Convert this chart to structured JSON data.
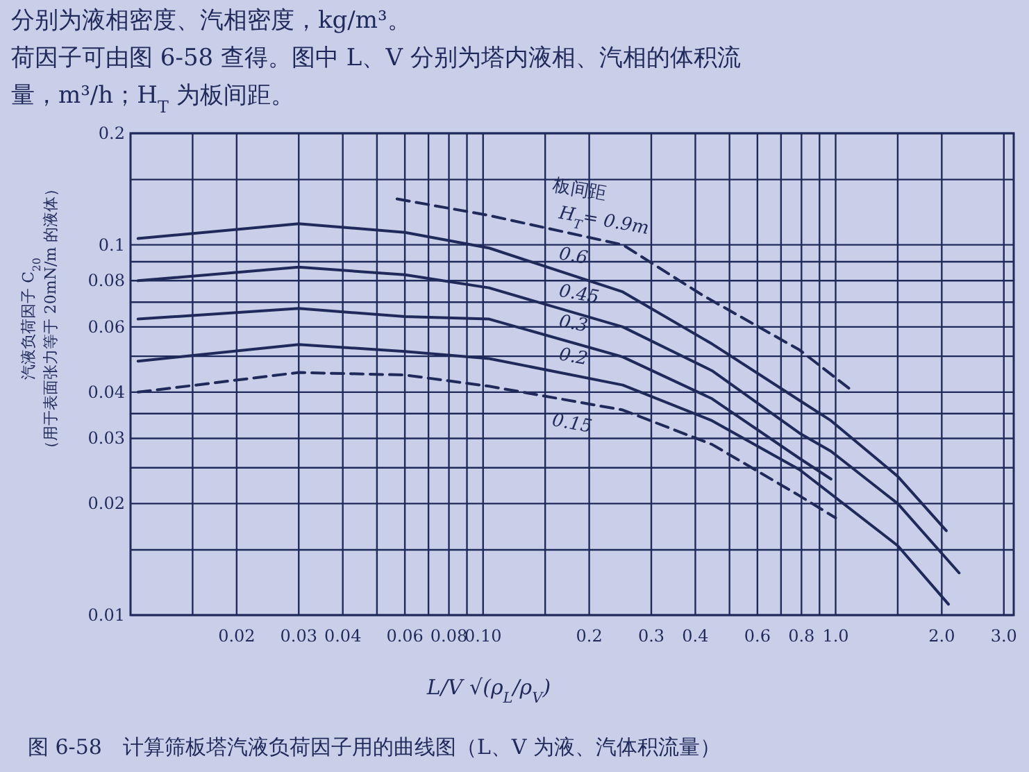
{
  "chart_data": {
    "type": "line",
    "title": "图 6-58　计算筛板塔汽液负荷因子用的曲线图（L、V 为液、汽体积流量）",
    "xlabel": "L/V √(ρ$_{L}$/ρ$_{V}$)",
    "ylabel": "汽液负荷因子 C$_{20}$\n（用于表面张力等于 20mN/m 的液体）",
    "legend_title": "板间距",
    "annotations": [
      "分别为液相密度、汽相密度，kg/m³。",
      "荷因子可由图 6-58 查得。图中 L、V 分别为塔内液相、汽相的体积流",
      "量，m³/h；H$_{T}$ 为板间距。"
    ],
    "log": "xy",
    "grid": true,
    "xlim": [
      0.01,
      3.2
    ],
    "ylim": [
      0.01,
      0.2
    ],
    "xticks": [
      {
        "value": 0.015,
        "label": null
      },
      0.02,
      0.03,
      0.04,
      {
        "value": 0.05,
        "label": null
      },
      0.06,
      {
        "value": 0.07,
        "label": null
      },
      0.08,
      {
        "value": 0.09,
        "label": null
      },
      {
        "value": 0.1,
        "label": "0.10"
      },
      {
        "value": 0.15,
        "label": null
      },
      0.2,
      0.3,
      0.4,
      {
        "value": 0.5,
        "label": null
      },
      0.6,
      {
        "value": 0.7,
        "label": null
      },
      0.8,
      {
        "value": 0.9,
        "label": null
      },
      {
        "value": 1,
        "label": "1.0"
      },
      {
        "value": 1.5,
        "label": null
      },
      {
        "value": 2,
        "label": "2.0"
      },
      {
        "value": 3,
        "label": "3.0"
      }
    ],
    "yticks": [
      0.01,
      {
        "value": 0.015,
        "label": null
      },
      0.02,
      {
        "value": 0.025,
        "label": null
      },
      0.03,
      {
        "value": 0.035,
        "label": null
      },
      0.04,
      {
        "value": 0.05,
        "label": null
      },
      0.06,
      {
        "value": 0.07,
        "label": null
      },
      0.08,
      {
        "value": 0.09,
        "label": null
      },
      0.1,
      {
        "value": 0.15,
        "label": null
      },
      0.2
    ],
    "series": [
      {
        "name": "H$_{T}$= 0.9m",
        "color": "#1f2a5a",
        "line_style": "dashed",
        "x": [
          0.057,
          0.104,
          0.249,
          0.42,
          0.79,
          1.09
        ],
        "values": [
          0.133,
          0.12,
          0.1,
          0.073,
          0.052,
          0.041
        ]
      },
      {
        "name": "0.6",
        "color": "#1f2a5a",
        "line_style": "solid",
        "x": [
          0.0105,
          0.03,
          0.06,
          0.104,
          0.249,
          0.446,
          0.79,
          0.97,
          1.5,
          2.06
        ],
        "values": [
          0.104,
          0.114,
          0.108,
          0.098,
          0.0746,
          0.054,
          0.038,
          0.0335,
          0.0237,
          0.0169
        ]
      },
      {
        "name": "0.45",
        "color": "#1f2a5a",
        "line_style": "solid",
        "x": [
          0.0105,
          0.03,
          0.06,
          0.104,
          0.249,
          0.446,
          0.79,
          0.97,
          1.5,
          2.24
        ],
        "values": [
          0.08,
          0.087,
          0.083,
          0.0765,
          0.06,
          0.0457,
          0.031,
          0.0277,
          0.02,
          0.013
        ]
      },
      {
        "name": "0.3",
        "color": "#1f2a5a",
        "line_style": "solid",
        "x": [
          0.0105,
          0.03,
          0.06,
          0.104,
          0.249,
          0.446,
          0.79,
          0.97
        ],
        "values": [
          0.063,
          0.0673,
          0.064,
          0.063,
          0.0498,
          0.0384,
          0.0265,
          0.0233
        ]
      },
      {
        "name": "0.2",
        "color": "#1f2a5a",
        "line_style": "solid",
        "x": [
          0.0105,
          0.03,
          0.06,
          0.104,
          0.249,
          0.446,
          0.79,
          1.5,
          2.09
        ],
        "values": [
          0.0485,
          0.0538,
          0.0515,
          0.0493,
          0.0418,
          0.0335,
          0.0247,
          0.0154,
          0.0107
        ]
      },
      {
        "name": "0.15",
        "color": "#1f2a5a",
        "line_style": "dashed",
        "x": [
          0.0105,
          0.03,
          0.06,
          0.104,
          0.249,
          0.446,
          0.79,
          1.0
        ],
        "values": [
          0.04,
          0.0452,
          0.0445,
          0.0415,
          0.0358,
          0.0289,
          0.021,
          0.0183
        ]
      }
    ]
  }
}
